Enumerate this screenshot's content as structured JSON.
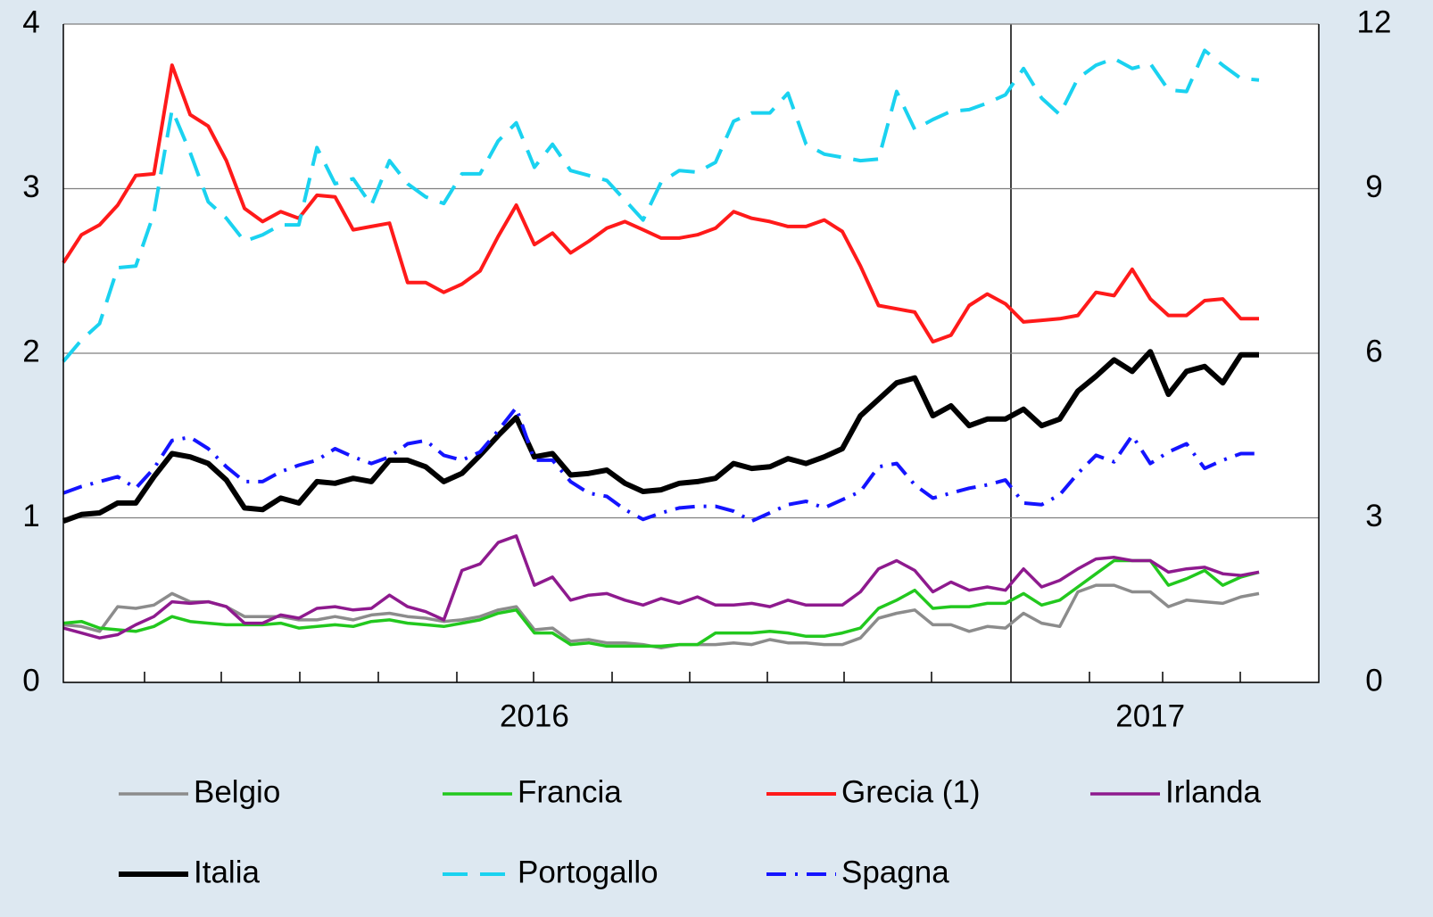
{
  "chart_data": {
    "type": "line",
    "categories": [
      null,
      null,
      null,
      null,
      null,
      null,
      null,
      null,
      null,
      null,
      null,
      null,
      null,
      null,
      null,
      null,
      null,
      null,
      null,
      null,
      null,
      null,
      null,
      null,
      null,
      null,
      "2016",
      null,
      null,
      null,
      null,
      null,
      null,
      null,
      null,
      null,
      null,
      null,
      null,
      null,
      null,
      null,
      null,
      null,
      null,
      null,
      null,
      null,
      null,
      null,
      null,
      null,
      null,
      null,
      null,
      null,
      null,
      null,
      null,
      null,
      "2017",
      null,
      null,
      null,
      null,
      null,
      null
    ],
    "ylim": [
      0,
      4
    ],
    "yticks": [
      0,
      1,
      2,
      3,
      4
    ],
    "y2lim": [
      0,
      12
    ],
    "y2ticks": [
      0,
      3,
      6,
      9,
      12
    ],
    "grid": true,
    "series": [
      {
        "name": "Belgio",
        "color": "#8c8c8c",
        "width": 3.5,
        "dash": "none",
        "values": [
          0.35,
          0.34,
          0.31,
          0.46,
          0.45,
          0.47,
          0.54,
          0.49,
          0.49,
          0.46,
          0.4,
          0.4,
          0.4,
          0.38,
          0.38,
          0.4,
          0.38,
          0.41,
          0.42,
          0.4,
          0.39,
          0.37,
          0.38,
          0.4,
          0.44,
          0.46,
          0.32,
          0.33,
          0.25,
          0.26,
          0.24,
          0.24,
          0.23,
          0.21,
          0.23,
          0.23,
          0.23,
          0.24,
          0.23,
          0.26,
          0.24,
          0.24,
          0.23,
          0.23,
          0.27,
          0.39,
          0.42,
          0.44,
          0.35,
          0.35,
          0.31,
          0.34,
          0.33,
          0.42,
          0.36,
          0.34,
          0.55,
          0.59,
          0.59,
          0.55,
          0.55,
          0.46,
          0.5,
          0.49,
          0.48,
          0.52,
          0.54
        ]
      },
      {
        "name": "Francia",
        "color": "#22c81e",
        "width": 3.5,
        "dash": "none",
        "values": [
          0.36,
          0.37,
          0.33,
          0.32,
          0.31,
          0.34,
          0.4,
          0.37,
          0.36,
          0.35,
          0.35,
          0.35,
          0.36,
          0.33,
          0.34,
          0.35,
          0.34,
          0.37,
          0.38,
          0.36,
          0.35,
          0.34,
          0.36,
          0.38,
          0.42,
          0.44,
          0.3,
          0.3,
          0.23,
          0.24,
          0.22,
          0.22,
          0.22,
          0.22,
          0.23,
          0.23,
          0.3,
          0.3,
          0.3,
          0.31,
          0.3,
          0.28,
          0.28,
          0.3,
          0.33,
          0.45,
          0.5,
          0.56,
          0.45,
          0.46,
          0.46,
          0.48,
          0.48,
          0.54,
          0.47,
          0.5,
          0.58,
          0.66,
          0.74,
          0.74,
          0.74,
          0.59,
          0.63,
          0.68,
          0.59,
          0.64,
          0.67
        ]
      },
      {
        "name": "Grecia (1)",
        "color": "#ff1a1a",
        "width": 4,
        "dash": "none",
        "axis": "y2",
        "values": [
          7.65,
          8.16,
          8.34,
          8.7,
          9.24,
          9.27,
          11.25,
          10.35,
          10.14,
          9.51,
          8.64,
          8.4,
          8.58,
          8.46,
          8.88,
          8.85,
          8.25,
          8.31,
          8.37,
          7.29,
          7.29,
          7.11,
          7.26,
          7.5,
          8.13,
          8.7,
          7.98,
          8.19,
          7.83,
          8.04,
          8.28,
          8.4,
          8.25,
          8.1,
          8.1,
          8.16,
          8.28,
          8.58,
          8.46,
          8.4,
          8.31,
          8.31,
          8.43,
          8.22,
          7.59,
          6.87,
          6.81,
          6.75,
          6.21,
          6.33,
          6.87,
          7.08,
          6.9,
          6.57,
          6.6,
          6.63,
          6.69,
          7.11,
          7.05,
          7.53,
          6.99,
          6.69,
          6.69,
          6.96,
          6.99,
          6.63,
          6.63
        ]
      },
      {
        "name": "Irlanda",
        "color": "#8e1a8e",
        "width": 3.5,
        "dash": "none",
        "values": [
          0.33,
          0.3,
          0.27,
          0.29,
          0.35,
          0.4,
          0.49,
          0.48,
          0.49,
          0.46,
          0.36,
          0.36,
          0.41,
          0.39,
          0.45,
          0.46,
          0.44,
          0.45,
          0.53,
          0.46,
          0.43,
          0.38,
          0.68,
          0.72,
          0.85,
          0.89,
          0.59,
          0.64,
          0.5,
          0.53,
          0.54,
          0.5,
          0.47,
          0.51,
          0.48,
          0.52,
          0.47,
          0.47,
          0.48,
          0.46,
          0.5,
          0.47,
          0.47,
          0.47,
          0.55,
          0.69,
          0.74,
          0.68,
          0.55,
          0.61,
          0.56,
          0.58,
          0.56,
          0.69,
          0.58,
          0.62,
          0.69,
          0.75,
          0.76,
          0.74,
          0.74,
          0.67,
          0.69,
          0.7,
          0.66,
          0.65,
          0.67
        ]
      },
      {
        "name": "Italia",
        "color": "#000000",
        "width": 6,
        "dash": "none",
        "values": [
          0.98,
          1.02,
          1.03,
          1.09,
          1.09,
          1.25,
          1.39,
          1.37,
          1.33,
          1.23,
          1.06,
          1.05,
          1.12,
          1.09,
          1.22,
          1.21,
          1.24,
          1.22,
          1.35,
          1.35,
          1.31,
          1.22,
          1.27,
          1.38,
          1.5,
          1.61,
          1.37,
          1.39,
          1.26,
          1.27,
          1.29,
          1.21,
          1.16,
          1.17,
          1.21,
          1.22,
          1.24,
          1.33,
          1.3,
          1.31,
          1.36,
          1.33,
          1.37,
          1.42,
          1.62,
          1.72,
          1.82,
          1.85,
          1.62,
          1.68,
          1.56,
          1.6,
          1.6,
          1.66,
          1.56,
          1.6,
          1.77,
          1.86,
          1.96,
          1.89,
          2.01,
          1.75,
          1.89,
          1.92,
          1.82,
          1.99,
          1.99
        ]
      },
      {
        "name": "Portogallo",
        "color": "#1ad2f0",
        "width": 4,
        "dash": "28 14",
        "values": [
          1.95,
          2.08,
          2.18,
          2.52,
          2.53,
          2.85,
          3.48,
          3.22,
          2.92,
          2.82,
          2.68,
          2.72,
          2.78,
          2.78,
          3.25,
          3.03,
          3.06,
          2.9,
          3.17,
          3.03,
          2.95,
          2.91,
          3.09,
          3.09,
          3.29,
          3.4,
          3.13,
          3.27,
          3.11,
          3.08,
          3.05,
          2.93,
          2.81,
          3.04,
          3.11,
          3.1,
          3.16,
          3.41,
          3.46,
          3.46,
          3.58,
          3.27,
          3.21,
          3.19,
          3.17,
          3.18,
          3.59,
          3.36,
          3.42,
          3.47,
          3.48,
          3.52,
          3.57,
          3.73,
          3.55,
          3.45,
          3.67,
          3.75,
          3.79,
          3.73,
          3.76,
          3.6,
          3.59,
          3.84,
          3.75,
          3.67,
          3.66
        ]
      },
      {
        "name": "Spagna",
        "color": "#1414ff",
        "width": 4,
        "dash": "22 10 3 10",
        "values": [
          1.15,
          1.19,
          1.22,
          1.25,
          1.18,
          1.3,
          1.47,
          1.49,
          1.42,
          1.31,
          1.22,
          1.22,
          1.28,
          1.32,
          1.35,
          1.42,
          1.37,
          1.33,
          1.37,
          1.45,
          1.47,
          1.38,
          1.35,
          1.4,
          1.53,
          1.67,
          1.35,
          1.35,
          1.22,
          1.15,
          1.13,
          1.05,
          0.99,
          1.03,
          1.06,
          1.07,
          1.07,
          1.04,
          0.98,
          1.03,
          1.08,
          1.1,
          1.06,
          1.11,
          1.16,
          1.31,
          1.33,
          1.2,
          1.12,
          1.15,
          1.18,
          1.2,
          1.23,
          1.09,
          1.08,
          1.14,
          1.27,
          1.38,
          1.34,
          1.5,
          1.33,
          1.4,
          1.45,
          1.3,
          1.35,
          1.39,
          1.39
        ]
      }
    ]
  }
}
